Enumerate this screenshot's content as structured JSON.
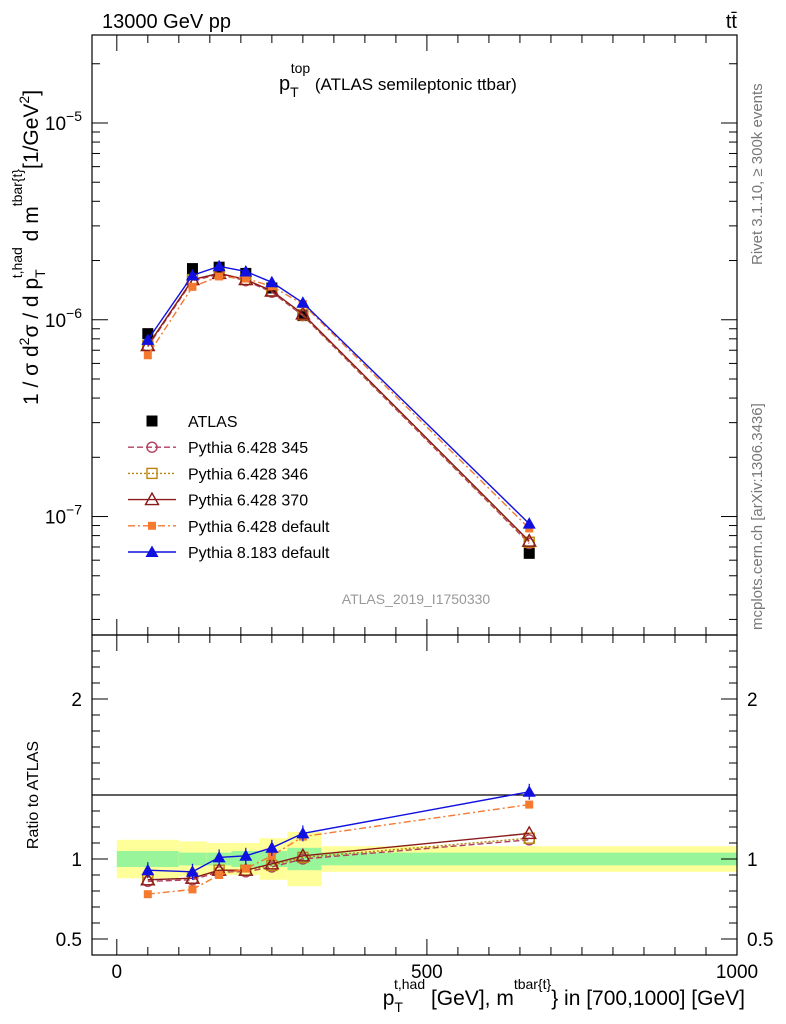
{
  "header": {
    "energy_label": "13000 GeV pp",
    "process_label": "tt̄"
  },
  "side_labels": {
    "rivet": "Rivet 3.1.10, ≥ 300k events",
    "mcplots": "mcplots.cern.ch [arXiv:1306.3436]"
  },
  "analysis_id": "ATLAS_2019_I1750330",
  "chart_data": [
    {
      "type": "line",
      "panel": "main",
      "title": {
        "main": "p",
        "sub": "T",
        "sup": "top",
        "rest": " (ATLAS semileptonic ttbar)"
      },
      "ylabel": "1 / σ d²σ / d p_T^{t,had} d m^{tbar{t}} [1/GeV²]",
      "yscale": "log",
      "ylim": [
        2.5e-08,
        2.8e-05
      ],
      "xlim": [
        -40,
        1000
      ],
      "y_tick_labels": [
        {
          "value": 1e-07,
          "base": "10",
          "exp": "−7"
        },
        {
          "value": 1e-06,
          "base": "10",
          "exp": "−6"
        },
        {
          "value": 1e-05,
          "base": "10",
          "exp": "−5"
        }
      ],
      "x": [
        50,
        122,
        165,
        208,
        250,
        300,
        665
      ],
      "series": [
        {
          "name": "ATLAS",
          "color": "#000000",
          "marker": "square-filled",
          "line": "none",
          "values": [
            8.5e-07,
            1.82e-06,
            1.85e-06,
            1.72e-06,
            1.45e-06,
            1.05e-06,
            6.5e-08
          ]
        },
        {
          "name": "Pythia 6.428 345",
          "color": "#b04060",
          "marker": "circle-open",
          "line": "dashed",
          "values": [
            7.3e-07,
            1.58e-06,
            1.7e-06,
            1.58e-06,
            1.38e-06,
            1.05e-06,
            7.3e-08
          ]
        },
        {
          "name": "Pythia 6.428 346",
          "color": "#b8860b",
          "marker": "square-open",
          "line": "dotted",
          "values": [
            7.4e-07,
            1.6e-06,
            1.72e-06,
            1.6e-06,
            1.4e-06,
            1.06e-06,
            7.4e-08
          ]
        },
        {
          "name": "Pythia 6.428 370",
          "color": "#8b1a1a",
          "marker": "triangle-open",
          "line": "solid",
          "values": [
            7.4e-07,
            1.6e-06,
            1.72e-06,
            1.6e-06,
            1.4e-06,
            1.07e-06,
            7.5e-08
          ]
        },
        {
          "name": "Pythia 6.428 default",
          "color": "#f47a30",
          "marker": "square-filled-small",
          "line": "dashdot",
          "values": [
            6.6e-07,
            1.47e-06,
            1.66e-06,
            1.62e-06,
            1.48e-06,
            1.2e-06,
            8.7e-08
          ]
        },
        {
          "name": "Pythia 8.183 default",
          "color": "#1010e0",
          "marker": "triangle-filled",
          "line": "solid",
          "values": [
            7.9e-07,
            1.68e-06,
            1.87e-06,
            1.76e-06,
            1.55e-06,
            1.22e-06,
            9.2e-08
          ]
        }
      ]
    },
    {
      "type": "line",
      "panel": "ratio",
      "ylabel": "Ratio to ATLAS",
      "xlabel": "p_T^{t,had} [GeV], m^{tbar{t}} in [700,1000] [GeV]",
      "xlim": [
        -40,
        1000
      ],
      "ylim": [
        0.4,
        2.4
      ],
      "x_ticks": [
        0,
        500,
        1000
      ],
      "y_ticks": [
        0.5,
        1,
        2
      ],
      "band_edges": [
        0,
        100,
        145,
        185,
        230,
        275,
        330,
        1000
      ],
      "band_green": [
        0.05,
        0.04,
        0.04,
        0.05,
        0.05,
        0.07,
        0.04
      ],
      "band_yellow": [
        0.12,
        0.11,
        0.1,
        0.1,
        0.13,
        0.17,
        0.08
      ],
      "x": [
        50,
        122,
        165,
        208,
        250,
        300,
        665
      ],
      "series": [
        {
          "name": "Pythia 6.428 345",
          "values": [
            0.86,
            0.87,
            0.92,
            0.92,
            0.95,
            1.0,
            1.12
          ]
        },
        {
          "name": "Pythia 6.428 346",
          "values": [
            0.87,
            0.88,
            0.93,
            0.93,
            0.96,
            1.01,
            1.13
          ]
        },
        {
          "name": "Pythia 6.428 370",
          "values": [
            0.87,
            0.88,
            0.93,
            0.93,
            0.97,
            1.02,
            1.16
          ]
        },
        {
          "name": "Pythia 6.428 default",
          "values": [
            0.78,
            0.81,
            0.9,
            0.94,
            1.02,
            1.14,
            1.34
          ]
        },
        {
          "name": "Pythia 8.183 default",
          "values": [
            0.93,
            0.92,
            1.01,
            1.02,
            1.07,
            1.16,
            1.42
          ]
        }
      ]
    }
  ]
}
